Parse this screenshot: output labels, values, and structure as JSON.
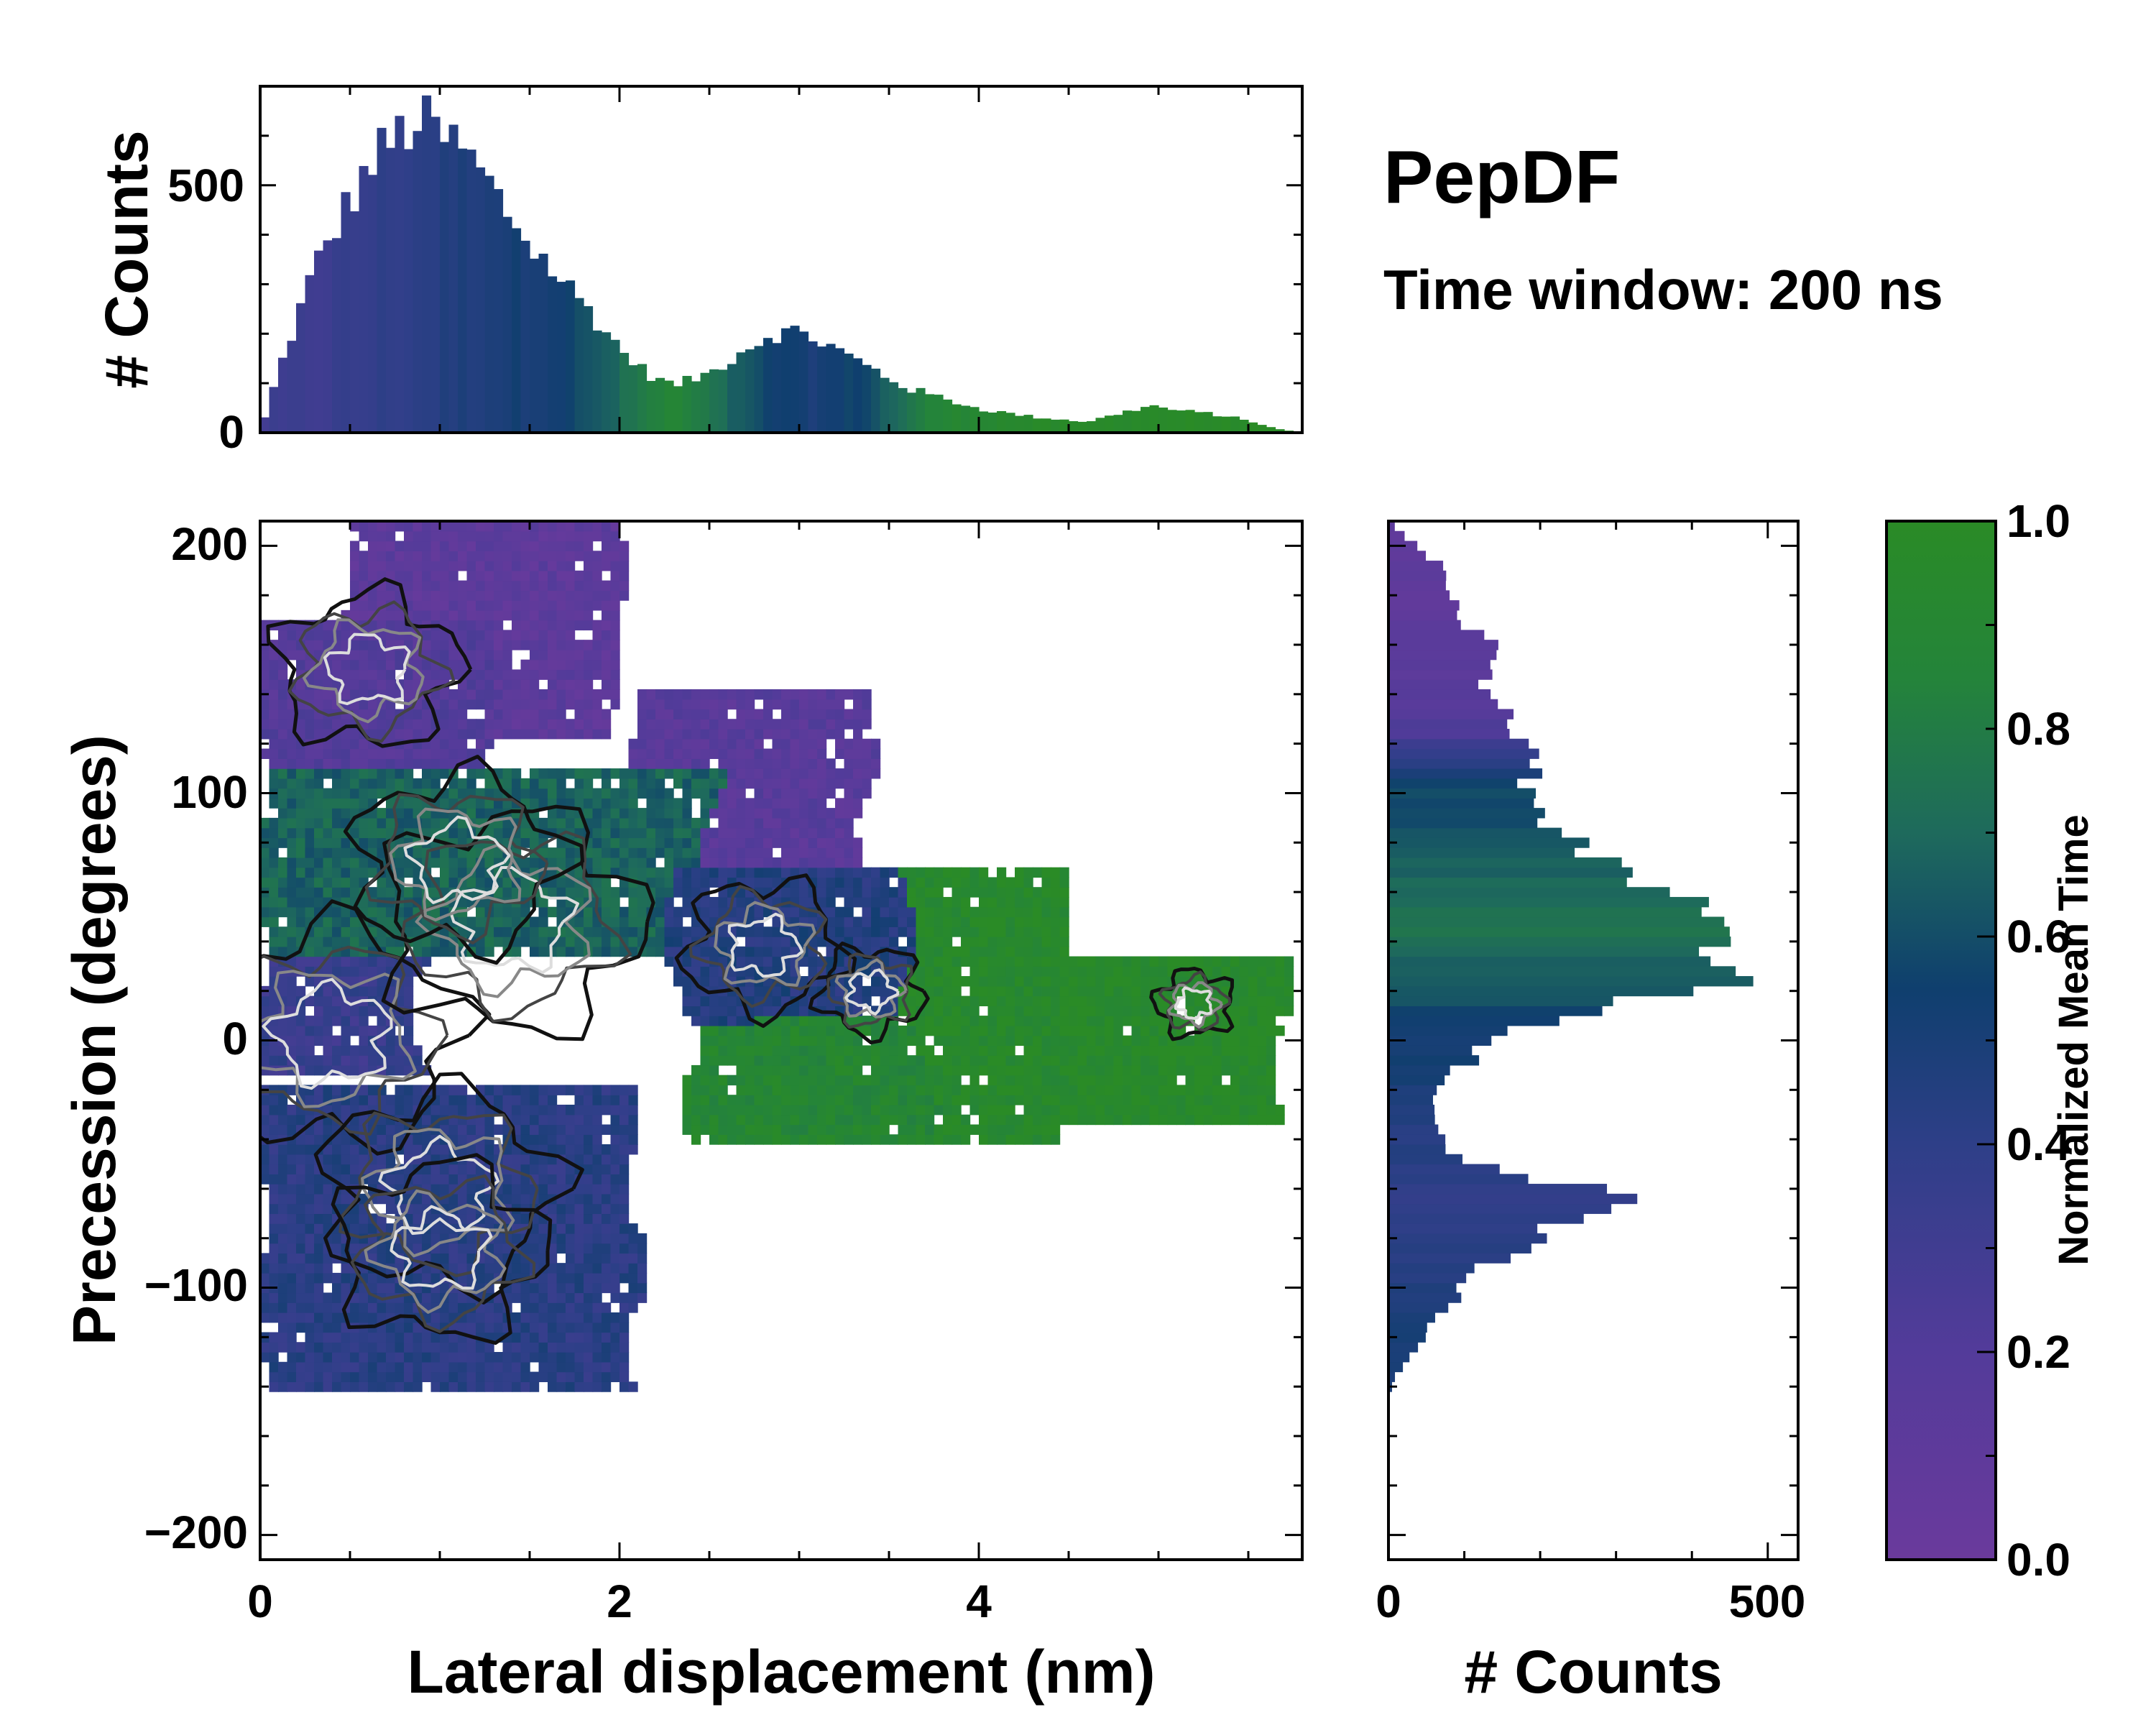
{
  "chart_data": [
    {
      "type": "bar",
      "panel": "top-marginal-histogram",
      "xlabel": "",
      "ylabel": "# Counts",
      "xlim": [
        0,
        5.8
      ],
      "ylim": [
        0,
        700
      ],
      "yticks": [
        0,
        500
      ],
      "ytick_labels": [
        "0",
        "500"
      ],
      "bin_width": 0.05,
      "profile_x": [
        0.0,
        0.1,
        0.3,
        0.5,
        0.65,
        0.8,
        0.9,
        1.0,
        1.1,
        1.2,
        1.35,
        1.5,
        1.7,
        1.85,
        2.0,
        2.15,
        2.3,
        2.5,
        2.7,
        2.85,
        3.0,
        3.2,
        3.4,
        3.6,
        3.8,
        4.0,
        4.3,
        4.6,
        4.8,
        4.95,
        5.1,
        5.3,
        5.5,
        5.65,
        5.8
      ],
      "profile_counts": [
        0,
        120,
        330,
        470,
        560,
        610,
        630,
        600,
        580,
        540,
        460,
        380,
        300,
        240,
        170,
        120,
        95,
        120,
        170,
        200,
        205,
        170,
        130,
        90,
        70,
        48,
        32,
        22,
        40,
        55,
        45,
        38,
        25,
        8,
        0
      ],
      "profile_color": [
        0.3,
        0.3,
        0.32,
        0.35,
        0.38,
        0.4,
        0.42,
        0.44,
        0.46,
        0.48,
        0.5,
        0.52,
        0.55,
        0.62,
        0.7,
        0.8,
        0.88,
        0.75,
        0.62,
        0.55,
        0.5,
        0.52,
        0.6,
        0.75,
        0.88,
        0.92,
        0.95,
        0.96,
        0.97,
        0.97,
        0.98,
        0.98,
        0.98,
        0.98,
        0.98
      ]
    },
    {
      "type": "heatmap",
      "panel": "main-2d-histogram",
      "xlabel": "Lateral displacement (nm)",
      "ylabel": "Precession (degrees)",
      "xlim": [
        0,
        5.8
      ],
      "ylim": [
        -210,
        210
      ],
      "xticks": [
        0,
        2,
        4
      ],
      "xtick_labels": [
        "0",
        "2",
        "4"
      ],
      "yticks": [
        200,
        100,
        0,
        -100,
        -200
      ],
      "ytick_labels": [
        "200",
        "100",
        "0",
        "−100",
        "−200"
      ],
      "color_value": "Normalized Mean Time",
      "regions": [
        {
          "name": "upper-violet-lobe",
          "x": [
            0.5,
            2.0
          ],
          "y": [
            120,
            205
          ],
          "color_value": 0.12
        },
        {
          "name": "upper-left-violet",
          "x": [
            0.0,
            1.3
          ],
          "y": [
            115,
            170
          ],
          "color_value": 0.18
        },
        {
          "name": "mid-right-violet",
          "x": [
            2.1,
            3.4
          ],
          "y": [
            70,
            140
          ],
          "color_value": 0.15
        },
        {
          "name": "central-green-band",
          "x": [
            0.0,
            2.5
          ],
          "y": [
            30,
            110
          ],
          "color_value": 0.68
        },
        {
          "name": "center-blue-band",
          "x": [
            2.3,
            3.8
          ],
          "y": [
            10,
            70
          ],
          "color_value": 0.45
        },
        {
          "name": "right-green-arm-a",
          "x": [
            3.6,
            4.5
          ],
          "y": [
            -40,
            75
          ],
          "color_value": 0.95
        },
        {
          "name": "right-green-arm-b",
          "x": [
            4.4,
            5.7
          ],
          "y": [
            -30,
            35
          ],
          "color_value": 0.97
        },
        {
          "name": "lower-arm-green",
          "x": [
            2.4,
            3.7
          ],
          "y": [
            -40,
            10
          ],
          "color_value": 0.9
        },
        {
          "name": "zero-blue-lobe",
          "x": [
            0.0,
            0.9
          ],
          "y": [
            -15,
            30
          ],
          "color_value": 0.35
        },
        {
          "name": "lower-blue-lobe",
          "x": [
            0.0,
            2.1
          ],
          "y": [
            -140,
            -20
          ],
          "color_value": 0.42
        }
      ],
      "density_peaks": [
        {
          "x": 0.4,
          "y": 2,
          "weight": 1.0
        },
        {
          "x": 1.4,
          "y": 48,
          "weight": 1.0
        },
        {
          "x": 1.1,
          "y": 72,
          "weight": 0.8
        },
        {
          "x": 0.6,
          "y": 150,
          "weight": 0.7
        },
        {
          "x": 1.0,
          "y": -60,
          "weight": 0.9
        },
        {
          "x": 1.0,
          "y": -85,
          "weight": 0.8
        },
        {
          "x": 2.8,
          "y": 38,
          "weight": 0.6
        },
        {
          "x": 3.4,
          "y": 20,
          "weight": 0.4
        },
        {
          "x": 5.2,
          "y": 15,
          "weight": 0.3
        }
      ]
    },
    {
      "type": "bar",
      "panel": "right-marginal-histogram",
      "orientation": "horizontal",
      "xlabel": "# Counts",
      "ylabel": "",
      "xlim": [
        0,
        540
      ],
      "ylim": [
        -210,
        210
      ],
      "xticks": [
        0,
        500
      ],
      "xtick_labels": [
        "0",
        "500"
      ],
      "bin_width": 4,
      "profile_y": [
        210,
        205,
        195,
        185,
        175,
        165,
        155,
        145,
        135,
        125,
        115,
        105,
        95,
        85,
        75,
        65,
        55,
        45,
        35,
        25,
        15,
        5,
        -5,
        -15,
        -25,
        -35,
        -45,
        -55,
        -60,
        -65,
        -75,
        -85,
        -95,
        -105,
        -115,
        -125,
        -135,
        -145
      ],
      "profile_counts": [
        0,
        20,
        60,
        75,
        90,
        110,
        150,
        130,
        150,
        170,
        180,
        190,
        200,
        220,
        260,
        320,
        400,
        420,
        400,
        480,
        300,
        170,
        120,
        80,
        60,
        70,
        80,
        160,
        300,
        330,
        220,
        170,
        110,
        90,
        60,
        35,
        10,
        0
      ],
      "profile_color": [
        0.1,
        0.1,
        0.1,
        0.1,
        0.1,
        0.12,
        0.12,
        0.15,
        0.18,
        0.22,
        0.4,
        0.55,
        0.6,
        0.62,
        0.66,
        0.68,
        0.72,
        0.75,
        0.7,
        0.65,
        0.6,
        0.55,
        0.52,
        0.5,
        0.48,
        0.45,
        0.42,
        0.42,
        0.4,
        0.4,
        0.4,
        0.42,
        0.45,
        0.48,
        0.5,
        0.5,
        0.5,
        0.5
      ]
    },
    {
      "type": "colorbar",
      "panel": "colorbar",
      "label": "Normalized Mean Time",
      "range": [
        0.0,
        1.0
      ],
      "ticks": [
        0.0,
        0.2,
        0.4,
        0.6,
        0.8,
        1.0
      ],
      "tick_labels": [
        "0.0",
        "0.2",
        "0.4",
        "0.6",
        "0.8",
        "1.0"
      ],
      "stops": [
        {
          "value": 0.0,
          "color": "#6a3a9c"
        },
        {
          "value": 0.2,
          "color": "#533b9a"
        },
        {
          "value": 0.4,
          "color": "#2e3f88"
        },
        {
          "value": 0.55,
          "color": "#0f3f6e"
        },
        {
          "value": 0.7,
          "color": "#1e6a5c"
        },
        {
          "value": 0.85,
          "color": "#24843a"
        },
        {
          "value": 1.0,
          "color": "#2a8b26"
        }
      ]
    }
  ],
  "title": "PepDF",
  "subtitle": "Time window: 200 ns"
}
